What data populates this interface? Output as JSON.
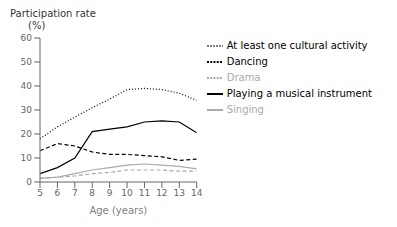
{
  "chart_data": {
    "type": "line",
    "x": [
      5,
      6,
      7,
      8,
      9,
      10,
      11,
      12,
      13,
      14
    ],
    "xlim": [
      5,
      14
    ],
    "xticks": [
      5,
      6,
      7,
      8,
      9,
      10,
      11,
      12,
      13,
      14
    ],
    "ylim": [
      0,
      60
    ],
    "yticks": [
      0,
      10,
      20,
      30,
      40,
      50,
      60
    ],
    "xlabel": "Age (years)",
    "ylabel": "Participation rate\n(%)",
    "grid": false,
    "legend": "right",
    "series": [
      {
        "name": "Playing a musical instrument",
        "color": "#000000",
        "line_style": "solid",
        "values": [
          3.5,
          6.0,
          10.0,
          21.0,
          22.0,
          23.0,
          25.0,
          25.5,
          25.0,
          20.5
        ]
      },
      {
        "name": "Singing",
        "color": "#aaaaaa",
        "line_style": "solid",
        "values": [
          1.5,
          2.0,
          3.5,
          5.0,
          6.0,
          7.0,
          7.5,
          7.0,
          6.5,
          5.5
        ]
      },
      {
        "name": "Dancing",
        "color": "#000000",
        "line_style": "dashed",
        "values": [
          13.0,
          16.0,
          15.0,
          12.5,
          11.5,
          11.5,
          11.0,
          10.5,
          9.0,
          9.5
        ]
      },
      {
        "name": "Drama",
        "color": "#aaaaaa",
        "line_style": "dashed",
        "values": [
          1.5,
          2.0,
          2.5,
          3.5,
          4.0,
          5.0,
          5.0,
          5.0,
          4.5,
          4.5
        ]
      },
      {
        "name": "At least one cultural activity",
        "color": "#000000",
        "line_style": "dotted",
        "values": [
          18.0,
          23.0,
          27.0,
          31.0,
          34.5,
          38.5,
          39.0,
          38.5,
          37.0,
          34.0
        ]
      }
    ]
  }
}
